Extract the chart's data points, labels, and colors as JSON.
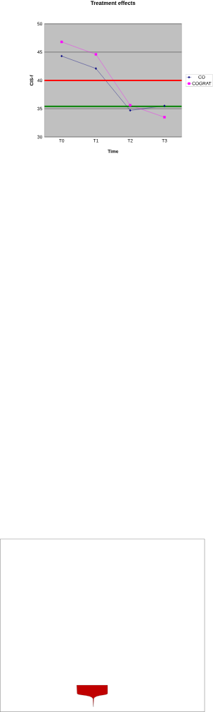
{
  "chart_data": {
    "type": "line",
    "title": "Treatment effects",
    "xlabel": "Time",
    "ylabel": "CIS-f",
    "categories": [
      "T0",
      "T1",
      "T2",
      "T3"
    ],
    "series": [
      {
        "name": "CO",
        "color": "#000080",
        "values": [
          44.3,
          42.1,
          34.7,
          35.5
        ],
        "marker": "diamond"
      },
      {
        "name": "COGRAT",
        "color": "#ff00ff",
        "values": [
          46.8,
          44.6,
          35.6,
          33.5
        ],
        "marker": "square"
      }
    ],
    "ylim": [
      30,
      50
    ],
    "yticks": [
      30,
      35,
      40,
      45,
      50
    ],
    "grid": "y",
    "legend": "right",
    "ref_lines": [
      {
        "axis": "y",
        "value": 40,
        "color": "#ff0000"
      },
      {
        "axis": "y",
        "value": 35.4,
        "color": "#008000"
      }
    ]
  }
}
